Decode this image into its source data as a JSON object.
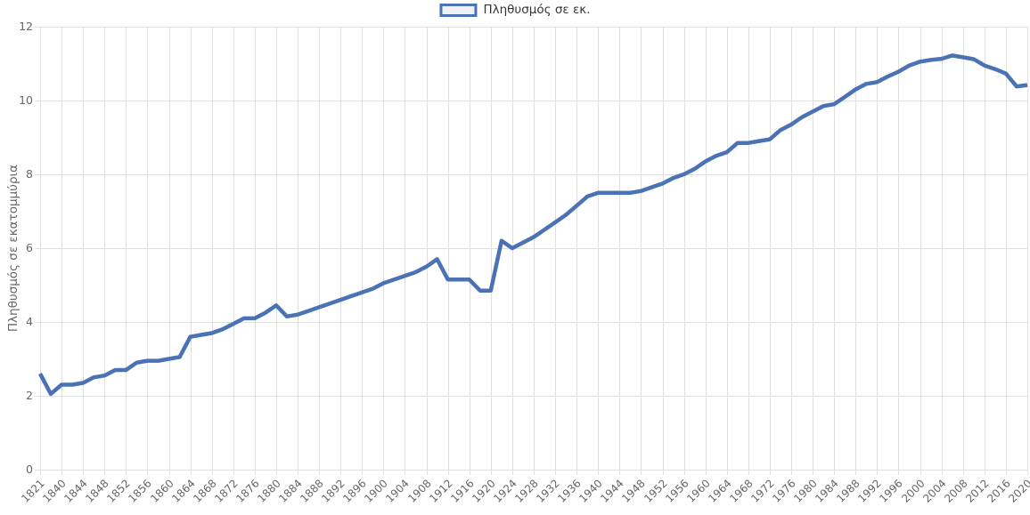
{
  "chart_data": {
    "type": "line",
    "title": "",
    "series_label": "Πληθυσμός σε εκ.",
    "ylabel": "Πληθυσμός σε εκατομμύρια",
    "xlabel": "",
    "ylim": [
      0,
      12
    ],
    "yticks": [
      "0",
      "2",
      "4",
      "6",
      "8",
      "10",
      "12"
    ],
    "grid": true,
    "legend_position": "top-center",
    "categories": [
      "1821",
      "1838",
      "1840",
      "1842",
      "1844",
      "1846",
      "1848",
      "1850",
      "1852",
      "1854",
      "1856",
      "1858",
      "1860",
      "1862",
      "1864",
      "1866",
      "1868",
      "1870",
      "1872",
      "1874",
      "1876",
      "1878",
      "1880",
      "1882",
      "1884",
      "1886",
      "1888",
      "1890",
      "1892",
      "1894",
      "1896",
      "1898",
      "1900",
      "1902",
      "1904",
      "1906",
      "1908",
      "1910",
      "1912",
      "1914",
      "1916",
      "1918",
      "1920",
      "1922",
      "1924",
      "1926",
      "1928",
      "1930",
      "1932",
      "1934",
      "1936",
      "1938",
      "1940",
      "1942",
      "1944",
      "1946",
      "1948",
      "1950",
      "1952",
      "1954",
      "1956",
      "1958",
      "1960",
      "1962",
      "1964",
      "1966",
      "1968",
      "1970",
      "1972",
      "1974",
      "1976",
      "1978",
      "1980",
      "1982",
      "1984",
      "1986",
      "1988",
      "1990",
      "1992",
      "1994",
      "1996",
      "1998",
      "2000",
      "2002",
      "2004",
      "2006",
      "2008",
      "2010",
      "2012",
      "2014",
      "2016",
      "2018",
      "2020"
    ],
    "values": [
      2.6,
      2.05,
      2.3,
      2.3,
      2.35,
      2.5,
      2.55,
      2.7,
      2.7,
      2.9,
      2.95,
      2.95,
      3.0,
      3.05,
      3.6,
      3.65,
      3.7,
      3.8,
      3.95,
      4.1,
      4.1,
      4.25,
      4.45,
      4.15,
      4.2,
      4.3,
      4.4,
      4.5,
      4.6,
      4.7,
      4.8,
      4.9,
      5.05,
      5.15,
      5.25,
      5.35,
      5.5,
      5.7,
      5.15,
      5.15,
      5.15,
      4.85,
      4.85,
      6.2,
      6.0,
      6.15,
      6.3,
      6.5,
      6.7,
      6.9,
      7.15,
      7.4,
      7.5,
      7.5,
      7.5,
      7.5,
      7.55,
      7.65,
      7.75,
      7.9,
      8.0,
      8.15,
      8.35,
      8.5,
      8.6,
      8.85,
      8.85,
      8.9,
      8.95,
      9.2,
      9.35,
      9.55,
      9.7,
      9.85,
      9.9,
      10.1,
      10.3,
      10.45,
      10.5,
      10.65,
      10.78,
      10.95,
      11.05,
      11.1,
      11.13,
      11.22,
      11.17,
      11.12,
      10.95,
      10.85,
      10.73,
      10.38,
      10.42
    ],
    "xtick_labels": [
      "1821",
      "1840",
      "1844",
      "1848",
      "1852",
      "1856",
      "1860",
      "1864",
      "1868",
      "1872",
      "1876",
      "1880",
      "1884",
      "1888",
      "1892",
      "1896",
      "1900",
      "1904",
      "1908",
      "1912",
      "1916",
      "1920",
      "1924",
      "1928",
      "1932",
      "1936",
      "1940",
      "1944",
      "1948",
      "1952",
      "1956",
      "1960",
      "1964",
      "1968",
      "1972",
      "1976",
      "1980",
      "1984",
      "1988",
      "1992",
      "1996",
      "2000",
      "2004",
      "2008",
      "2012",
      "2016",
      "2020"
    ],
    "colors": {
      "line": "#4a72b4",
      "legend_fill": "#eef0f4",
      "grid": "#e0e0e0",
      "axis_text": "#666666",
      "legend_text": "#333333",
      "background": "#ffffff"
    }
  }
}
